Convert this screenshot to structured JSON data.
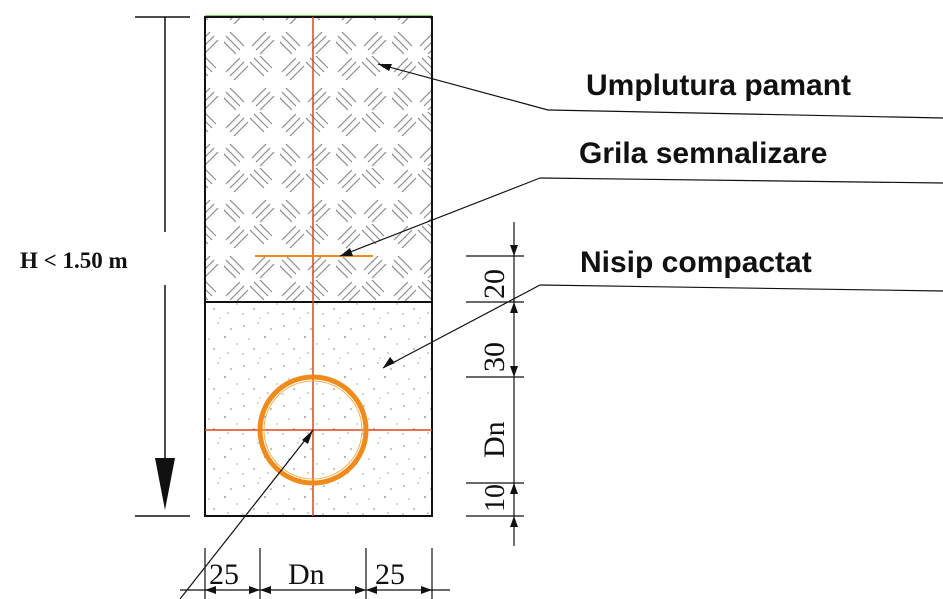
{
  "labels": {
    "fill_layer": "Umplutura pamant",
    "warning_grid": "Grila semnalizare",
    "sand_layer": "Nisip compactat"
  },
  "dimensions": {
    "height": "H < 1.50 m",
    "side_left": "25",
    "pipe_width": "Dn",
    "side_right": "25",
    "grid_above_sand": "20",
    "cover_above_pipe": "30",
    "pipe_height": "Dn",
    "bedding_below_pipe": "10"
  },
  "colors": {
    "line": "#111111",
    "axis": "#e2431c",
    "pipe": "#f08a1a",
    "hatch": "#8a8a8a",
    "sand_dots": "#9a9a9a",
    "ground": "#7fd36a"
  }
}
